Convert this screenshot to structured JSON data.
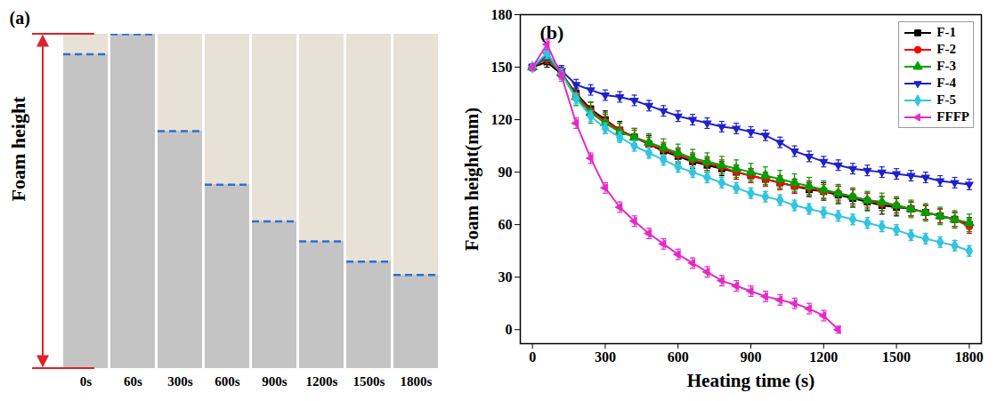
{
  "chart_data": [
    {
      "type": "photo",
      "title": "(a)",
      "y_label": "Foam height",
      "categories": [
        "0s",
        "60s",
        "300s",
        "600s",
        "900s",
        "1200s",
        "1500s",
        "1800s"
      ],
      "values": [
        0.94,
        1.0,
        0.71,
        0.55,
        0.44,
        0.38,
        0.32,
        0.28
      ],
      "ylim": [
        0,
        1
      ],
      "color": "#2a6fd6",
      "tick_labels": "x"
    },
    {
      "type": "line",
      "title": "(b)",
      "x_label": "Heating time (s)",
      "y_label": "Foam height(mm)",
      "x": [
        0,
        60,
        120,
        180,
        240,
        300,
        360,
        420,
        480,
        540,
        600,
        660,
        720,
        780,
        840,
        900,
        960,
        1020,
        1080,
        1140,
        1200,
        1260,
        1320,
        1380,
        1440,
        1500,
        1560,
        1620,
        1680,
        1740,
        1800
      ],
      "xlim": [
        -50,
        1850
      ],
      "xticks": [
        0,
        300,
        600,
        900,
        1200,
        1500,
        1800
      ],
      "ylim": [
        -8,
        180
      ],
      "yticks": [
        0,
        30,
        60,
        90,
        120,
        150,
        180
      ],
      "legend": "top-right",
      "series": [
        {
          "name": "F-1",
          "color": "#000000",
          "marker": "square",
          "values": [
            150,
            153,
            146,
            135,
            126,
            120,
            114,
            110,
            106,
            102,
            99,
            96,
            94,
            92,
            90,
            88,
            86,
            84,
            82,
            80,
            79,
            77,
            75,
            73,
            71,
            70,
            69,
            67,
            65,
            63,
            60
          ],
          "errors": [
            2,
            3,
            3,
            3,
            4,
            5,
            5,
            5,
            5,
            4,
            4,
            4,
            4,
            4,
            4,
            4,
            4,
            4,
            4,
            4,
            5,
            5,
            5,
            5,
            5,
            5,
            4,
            4,
            4,
            4,
            4
          ]
        },
        {
          "name": "F-2",
          "color": "#ff0000",
          "marker": "circle",
          "values": [
            150,
            155,
            147,
            134,
            125,
            119,
            114,
            110,
            106,
            103,
            100,
            97,
            95,
            93,
            90,
            88,
            86,
            84,
            82,
            81,
            79,
            78,
            76,
            74,
            72,
            71,
            69,
            67,
            65,
            63,
            59
          ],
          "errors": [
            2,
            3,
            3,
            3,
            3,
            4,
            4,
            4,
            4,
            4,
            4,
            4,
            4,
            4,
            4,
            4,
            4,
            4,
            4,
            4,
            4,
            4,
            4,
            4,
            4,
            4,
            4,
            4,
            4,
            4,
            4
          ]
        },
        {
          "name": "F-3",
          "color": "#00a000",
          "marker": "triangle",
          "values": [
            150,
            156,
            147,
            133,
            124,
            118,
            113,
            110,
            107,
            104,
            101,
            98,
            96,
            94,
            92,
            90,
            88,
            86,
            84,
            82,
            80,
            78,
            76,
            74,
            73,
            71,
            69,
            67,
            65,
            63,
            61
          ],
          "errors": [
            2,
            3,
            4,
            5,
            6,
            6,
            5,
            5,
            5,
            5,
            5,
            5,
            5,
            5,
            5,
            5,
            5,
            5,
            5,
            5,
            5,
            5,
            5,
            5,
            5,
            5,
            5,
            5,
            5,
            5,
            5
          ]
        },
        {
          "name": "F-4",
          "color": "#2020cc",
          "marker": "triangle-down",
          "values": [
            150,
            157,
            148,
            140,
            137,
            134,
            133,
            131,
            128,
            125,
            122,
            120,
            118,
            116,
            115,
            113,
            111,
            107,
            102,
            99,
            96,
            94,
            92,
            91,
            90,
            89,
            88,
            87,
            85,
            84,
            83
          ],
          "errors": [
            2,
            3,
            3,
            3,
            3,
            3,
            3,
            3,
            3,
            3,
            3,
            3,
            3,
            3,
            3,
            3,
            3,
            3,
            3,
            3,
            3,
            3,
            3,
            3,
            3,
            3,
            3,
            3,
            3,
            3,
            3
          ]
        },
        {
          "name": "F-5",
          "color": "#33c4e0",
          "marker": "diamond",
          "values": [
            150,
            158,
            146,
            132,
            122,
            115,
            110,
            105,
            101,
            97,
            93,
            90,
            87,
            84,
            81,
            78,
            76,
            74,
            71,
            69,
            67,
            65,
            63,
            61,
            59,
            57,
            54,
            52,
            50,
            48,
            45
          ],
          "errors": [
            2,
            3,
            3,
            3,
            3,
            3,
            3,
            3,
            3,
            3,
            3,
            3,
            3,
            3,
            3,
            3,
            3,
            3,
            3,
            3,
            3,
            3,
            3,
            3,
            3,
            3,
            3,
            3,
            3,
            3,
            3
          ]
        },
        {
          "name": "FFFP",
          "color": "#e52ac8",
          "marker": "triangle-left",
          "values": [
            150,
            163,
            145,
            118,
            98,
            81,
            70,
            62,
            55,
            49,
            43,
            38,
            33,
            28,
            25,
            22,
            19,
            17,
            15,
            12,
            8,
            0,
            null,
            null,
            null,
            null,
            null,
            null,
            null,
            null,
            null
          ],
          "errors": [
            2,
            3,
            3,
            3,
            3,
            3,
            3,
            3,
            3,
            3,
            3,
            3,
            3,
            3,
            3,
            3,
            3,
            3,
            3,
            3,
            3,
            2,
            null,
            null,
            null,
            null,
            null,
            null,
            null,
            null,
            null
          ]
        }
      ]
    }
  ]
}
